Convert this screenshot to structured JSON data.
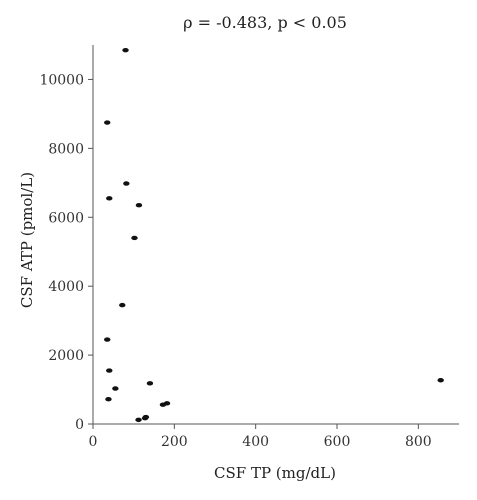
{
  "chart_data": {
    "type": "scatter",
    "title": "ρ = -0.483, p < 0.05",
    "xlabel": "CSF TP (mg/dL)",
    "ylabel": "CSF ATP (pmol/L)",
    "xlim": [
      0,
      900
    ],
    "ylim": [
      0,
      11000
    ],
    "xticks": [
      0,
      200,
      400,
      600,
      800
    ],
    "yticks": [
      0,
      2000,
      4000,
      6000,
      8000,
      10000
    ],
    "grid": false,
    "marker_color": "#111111",
    "points": [
      {
        "x": 80,
        "y": 10850
      },
      {
        "x": 35,
        "y": 8750
      },
      {
        "x": 82,
        "y": 6980
      },
      {
        "x": 40,
        "y": 6550
      },
      {
        "x": 113,
        "y": 6350
      },
      {
        "x": 102,
        "y": 5400
      },
      {
        "x": 72,
        "y": 3450
      },
      {
        "x": 35,
        "y": 2450
      },
      {
        "x": 40,
        "y": 1550
      },
      {
        "x": 140,
        "y": 1180
      },
      {
        "x": 55,
        "y": 1030
      },
      {
        "x": 38,
        "y": 720
      },
      {
        "x": 172,
        "y": 560
      },
      {
        "x": 182,
        "y": 600
      },
      {
        "x": 128,
        "y": 170
      },
      {
        "x": 130,
        "y": 200
      },
      {
        "x": 112,
        "y": 120
      },
      {
        "x": 855,
        "y": 1270
      }
    ]
  }
}
